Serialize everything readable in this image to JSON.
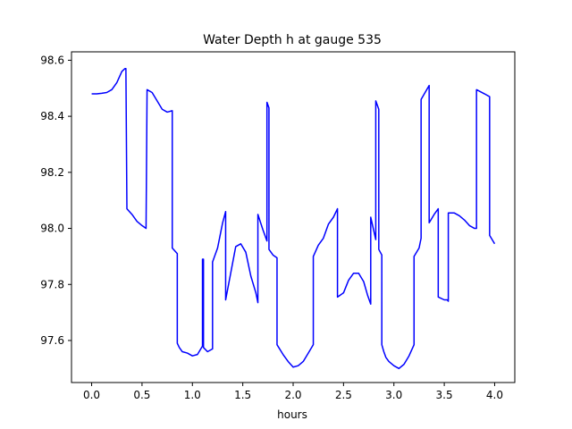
{
  "chart_data": {
    "type": "line",
    "title": "Water Depth h at gauge 535",
    "xlabel": "hours",
    "ylabel": "",
    "xlim": [
      -0.2,
      4.2
    ],
    "ylim": [
      97.45,
      98.63
    ],
    "xticks": [
      0.0,
      0.5,
      1.0,
      1.5,
      2.0,
      2.5,
      3.0,
      3.5,
      4.0
    ],
    "xtick_labels": [
      "0.0",
      "0.5",
      "1.0",
      "1.5",
      "2.0",
      "2.5",
      "3.0",
      "3.5",
      "4.0"
    ],
    "yticks": [
      97.6,
      97.8,
      98.0,
      98.2,
      98.4,
      98.6
    ],
    "ytick_labels": [
      "97.6",
      "97.8",
      "98.0",
      "98.2",
      "98.4",
      "98.6"
    ],
    "grid": false,
    "series": [
      {
        "color": "#0000ff",
        "x": [
          0.0,
          0.05,
          0.1,
          0.15,
          0.2,
          0.25,
          0.3,
          0.33,
          0.34,
          0.35,
          0.4,
          0.45,
          0.5,
          0.54,
          0.55,
          0.6,
          0.65,
          0.7,
          0.75,
          0.8,
          0.8,
          0.85,
          0.85,
          0.87,
          0.9,
          0.95,
          1.0,
          1.05,
          1.1,
          1.1,
          1.11,
          1.11,
          1.15,
          1.2,
          1.2,
          1.25,
          1.3,
          1.33,
          1.33,
          1.38,
          1.43,
          1.48,
          1.53,
          1.58,
          1.63,
          1.65,
          1.65,
          1.7,
          1.74,
          1.74,
          1.76,
          1.76,
          1.8,
          1.84,
          1.84,
          1.9,
          1.95,
          2.0,
          2.05,
          2.1,
          2.15,
          2.2,
          2.2,
          2.25,
          2.3,
          2.35,
          2.4,
          2.44,
          2.44,
          2.5,
          2.55,
          2.6,
          2.65,
          2.7,
          2.74,
          2.77,
          2.77,
          2.82,
          2.82,
          2.85,
          2.85,
          2.88,
          2.88,
          2.9,
          2.92,
          2.95,
          3.0,
          3.05,
          3.1,
          3.15,
          3.2,
          3.2,
          3.25,
          3.27,
          3.27,
          3.35,
          3.35,
          3.4,
          3.44,
          3.44,
          3.5,
          3.53,
          3.54,
          3.54,
          3.6,
          3.65,
          3.7,
          3.75,
          3.8,
          3.82,
          3.82,
          3.9,
          3.95,
          3.95,
          4.0
        ],
        "y": [
          98.48,
          98.48,
          98.482,
          98.485,
          98.495,
          98.52,
          98.56,
          98.57,
          98.57,
          98.07,
          98.05,
          98.025,
          98.01,
          98.0,
          98.495,
          98.485,
          98.455,
          98.425,
          98.415,
          98.42,
          97.93,
          97.91,
          97.59,
          97.575,
          97.56,
          97.555,
          97.545,
          97.55,
          97.58,
          97.89,
          97.89,
          97.575,
          97.56,
          97.57,
          97.88,
          97.93,
          98.02,
          98.06,
          97.745,
          97.84,
          97.935,
          97.945,
          97.915,
          97.83,
          97.77,
          97.735,
          98.05,
          97.995,
          97.955,
          98.45,
          98.43,
          97.925,
          97.905,
          97.895,
          97.585,
          97.55,
          97.525,
          97.505,
          97.51,
          97.525,
          97.555,
          97.585,
          97.9,
          97.94,
          97.965,
          98.015,
          98.04,
          98.07,
          97.755,
          97.77,
          97.815,
          97.84,
          97.84,
          97.81,
          97.76,
          97.73,
          98.04,
          97.96,
          98.455,
          98.425,
          97.925,
          97.905,
          97.585,
          97.56,
          97.54,
          97.525,
          97.51,
          97.5,
          97.515,
          97.545,
          97.585,
          97.9,
          97.93,
          97.965,
          98.46,
          98.51,
          98.02,
          98.05,
          98.07,
          97.755,
          97.745,
          97.745,
          97.74,
          98.055,
          98.055,
          98.045,
          98.03,
          98.01,
          98.0,
          98.0,
          98.495,
          98.48,
          98.47,
          97.975,
          97.945
        ]
      }
    ]
  }
}
